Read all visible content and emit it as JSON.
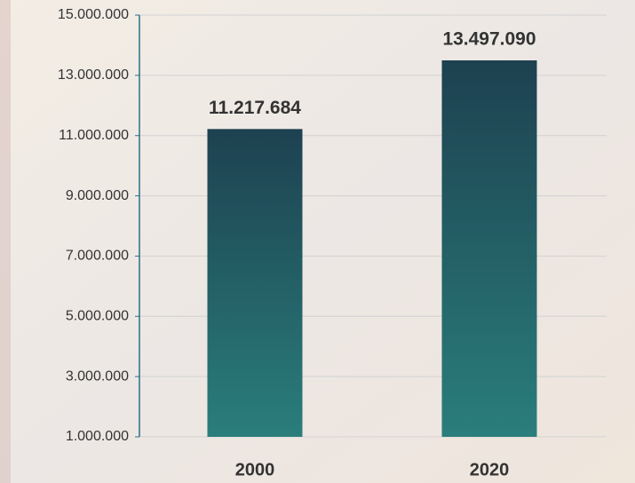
{
  "chart_data": {
    "type": "bar",
    "categories": [
      "2000",
      "2020"
    ],
    "values": [
      11217684,
      13497090
    ],
    "value_labels": [
      "11.217.684",
      "13.497.090"
    ],
    "color_top": "#1d4150",
    "color_bottom": "#2a7e7c",
    "ylim": [
      1000000,
      15000000
    ],
    "yticks": [
      {
        "value": 1000000,
        "label": "1.000.000"
      },
      {
        "value": 3000000,
        "label": "3.000.000"
      },
      {
        "value": 5000000,
        "label": "5.000.000"
      },
      {
        "value": 7000000,
        "label": "7.000.000"
      },
      {
        "value": 9000000,
        "label": "9.000.000"
      },
      {
        "value": 11000000,
        "label": "11.000.000"
      },
      {
        "value": 13000000,
        "label": "13.000.000"
      },
      {
        "value": 15000000,
        "label": "15.000.000"
      }
    ],
    "grid": true
  }
}
